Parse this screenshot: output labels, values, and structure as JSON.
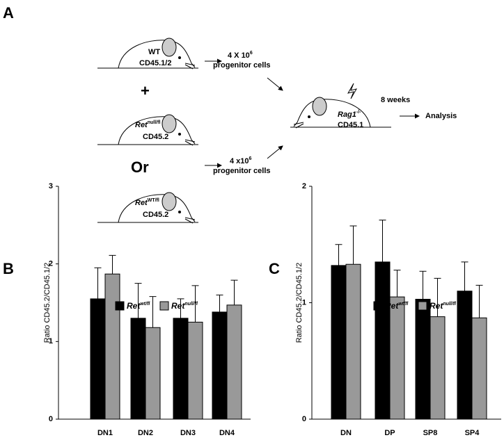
{
  "diagram": {
    "panel_a": "A",
    "donor1": {
      "name": "WT",
      "marker": "CD45.1/2"
    },
    "plus": "+",
    "donor2": {
      "name": [
        "Ret",
        "null/fl"
      ],
      "marker": "CD45.2"
    },
    "or": "Or",
    "donor3": {
      "name": [
        "Ret",
        "WT/fl"
      ],
      "marker": "CD45.2"
    },
    "cells_top": [
      "4 X 10",
      "6"
    ],
    "cells_top_label": "progenitor cells",
    "cells_bottom": [
      "4 x10",
      "6"
    ],
    "cells_bottom_label": "progenitor cells",
    "recipient": {
      "name": [
        "Rag1",
        "-/-"
      ],
      "marker": "CD45.1"
    },
    "duration": "8 weeks",
    "outcome": "Analysis"
  },
  "chart_data": [
    {
      "type": "bar",
      "panel": "B",
      "ylabel": "Ratio CD45.2/CD45.1/2",
      "categories": [
        "DN1",
        "DN2",
        "DN3",
        "DN4"
      ],
      "series": [
        {
          "name": [
            "Ret",
            "wt/fl"
          ],
          "color": "#000000",
          "values": [
            1.55,
            1.3,
            1.3,
            1.38
          ],
          "errors": [
            0.4,
            0.45,
            0.25,
            0.22
          ]
        },
        {
          "name": [
            "Ret",
            "null/fl"
          ],
          "color": "#999999",
          "values": [
            1.87,
            1.18,
            1.25,
            1.47
          ],
          "errors": [
            0.24,
            0.4,
            0.47,
            0.32
          ]
        }
      ],
      "ylim": [
        0,
        3
      ],
      "yticks": [
        0,
        1,
        2,
        3
      ]
    },
    {
      "type": "bar",
      "panel": "C",
      "ylabel": "Ratio CD45.2/CD45.1/2",
      "categories": [
        "DN",
        "DP",
        "SP8",
        "SP4"
      ],
      "series": [
        {
          "name": [
            "Ret",
            "wt/fl"
          ],
          "color": "#000000",
          "values": [
            1.32,
            1.35,
            1.03,
            1.1
          ],
          "errors": [
            0.18,
            0.36,
            0.24,
            0.25
          ]
        },
        {
          "name": [
            "Ret",
            "null/fl"
          ],
          "color": "#999999",
          "values": [
            1.33,
            1.05,
            0.88,
            0.87
          ],
          "errors": [
            0.33,
            0.23,
            0.33,
            0.28
          ]
        }
      ],
      "ylim": [
        0,
        2
      ],
      "yticks": [
        0,
        1,
        2
      ]
    }
  ]
}
